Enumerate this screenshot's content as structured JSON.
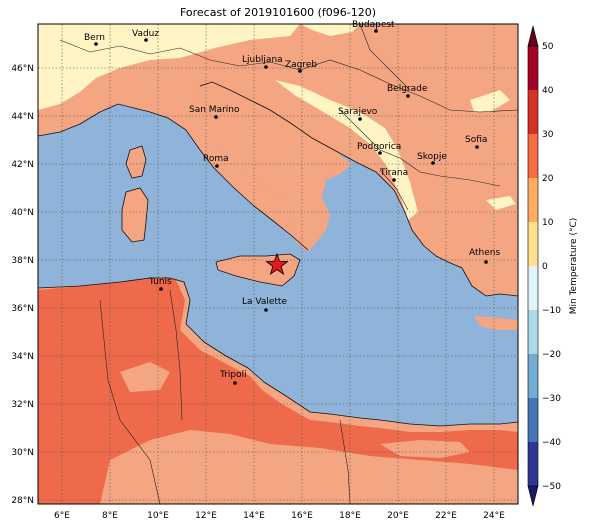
{
  "title": "Forecast of 2019101600 (f096-120)",
  "colorbar": {
    "label": "Min Temperature (°C)",
    "ticks": [
      "50",
      "40",
      "30",
      "20",
      "10",
      "0",
      "−10",
      "−20",
      "−30",
      "−40",
      "−50"
    ],
    "colors": [
      "#a50026",
      "#d73027",
      "#f46d43",
      "#fdae61",
      "#fee090",
      "#e0f3f8",
      "#abd9e9",
      "#74add1",
      "#4575b4",
      "#313695"
    ]
  },
  "axes": {
    "lat_labels": [
      "46°N",
      "44°N",
      "42°N",
      "40°N",
      "38°N",
      "36°N",
      "34°N",
      "32°N",
      "30°N",
      "28°N"
    ],
    "lon_labels": [
      "6°E",
      "8°E",
      "10°E",
      "12°E",
      "14°E",
      "16°E",
      "18°E",
      "20°E",
      "22°E",
      "24°E"
    ]
  },
  "cities": [
    {
      "name": "Bern"
    },
    {
      "name": "Vaduz"
    },
    {
      "name": "Budapest"
    },
    {
      "name": "Ljubljana"
    },
    {
      "name": "Zagreb"
    },
    {
      "name": "Belgrade"
    },
    {
      "name": "San Marino"
    },
    {
      "name": "Sarajevo"
    },
    {
      "name": "Sofia"
    },
    {
      "name": "Podgorica"
    },
    {
      "name": "Skopje"
    },
    {
      "name": "Roma"
    },
    {
      "name": "Tirana"
    },
    {
      "name": "Athens"
    },
    {
      "name": "Tunis"
    },
    {
      "name": "La Valette"
    },
    {
      "name": "Tripoli"
    }
  ],
  "marker": {
    "type": "star",
    "color": "#e31a1c"
  },
  "colors": {
    "sea": "#8fb3d9",
    "warm": "#f4a582",
    "hot": "#ee6a4a",
    "mild": "#fff4c4"
  }
}
